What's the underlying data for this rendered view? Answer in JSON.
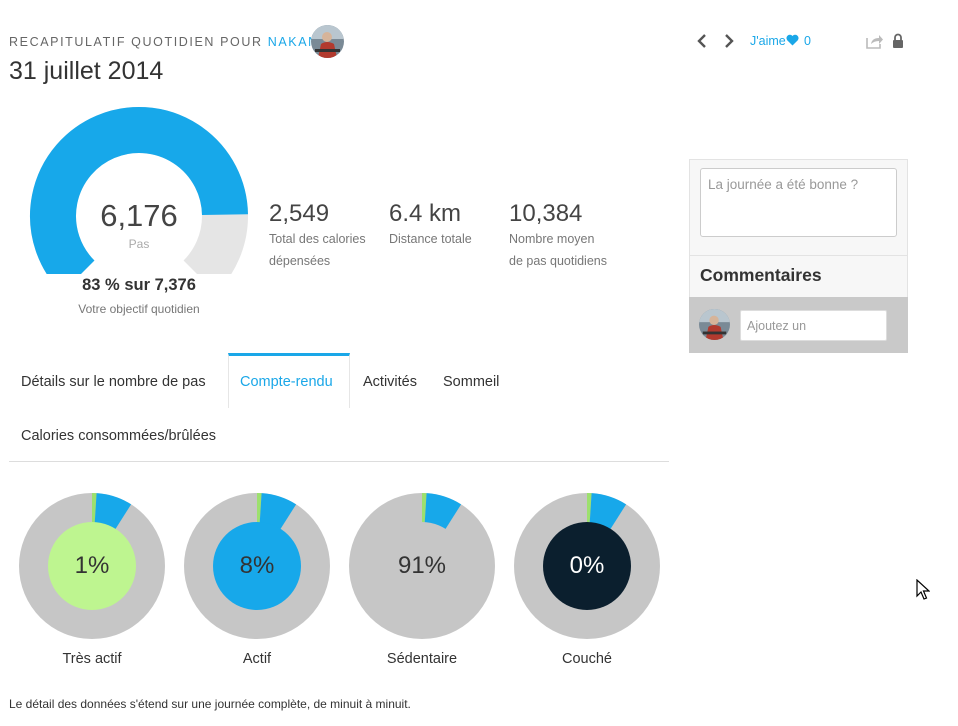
{
  "header": {
    "subtitle_prefix": "RECAPITULATIF QUOTIDIEN POUR",
    "username": "NAKAN",
    "date": "31 juillet 2014"
  },
  "toolbar": {
    "prev_icon": "chevron-left-icon",
    "next_icon": "chevron-right-icon",
    "like_label": "J'aime",
    "like_icon": "heart-icon",
    "like_count": "0",
    "share_icon": "share-icon",
    "lock_icon": "lock-icon"
  },
  "gauge": {
    "value": "6,176",
    "unit": "Pas",
    "goal_text": "83 % sur 7,376",
    "goal_label": "Votre objectif quotidien",
    "fraction": 0.83,
    "fill_color": "#17a8ea",
    "track_color": "#e5e5e5"
  },
  "stats": [
    {
      "value": "2,549",
      "label_line1": "Total des calories",
      "label_line2": "dépensées"
    },
    {
      "value": "6.4 km",
      "label_line1": "Distance totale",
      "label_line2": ""
    },
    {
      "value": "10,384",
      "label_line1": "Nombre moyen",
      "label_line2": "de pas quotidiens"
    }
  ],
  "side_panel": {
    "note_placeholder": "La journée a été bonne ?",
    "comments_title": "Commentaires",
    "comment_placeholder": "Ajoutez un"
  },
  "tabs": [
    {
      "label": "Détails sur le nombre de pas",
      "active": false
    },
    {
      "label": "Compte-rendu",
      "active": true
    },
    {
      "label": "Activités",
      "active": false
    },
    {
      "label": "Sommeil",
      "active": false
    },
    {
      "label": "Calories consommées/brûlées",
      "active": false
    }
  ],
  "breakdown": [
    {
      "label": "Très actif",
      "percent": "1%",
      "center_color": "#bef590",
      "text_color": "#333333"
    },
    {
      "label": "Actif",
      "percent": "8%",
      "center_color": "#17a8ea",
      "text_color": "#333333"
    },
    {
      "label": "Sédentaire",
      "percent": "91%",
      "center_color": "#c6c6c6",
      "text_color": "#333333"
    },
    {
      "label": "Couché",
      "percent": "0%",
      "center_color": "#0b1f2e",
      "text_color": "#ffffff"
    }
  ],
  "colors": {
    "accent": "#1aa7e8",
    "very_active": "#9de06e",
    "active": "#17a8ea",
    "sedentary": "#c6c6c6"
  },
  "footer": {
    "note": "Le détail des données s'étend sur une journée complète, de minuit à minuit."
  }
}
